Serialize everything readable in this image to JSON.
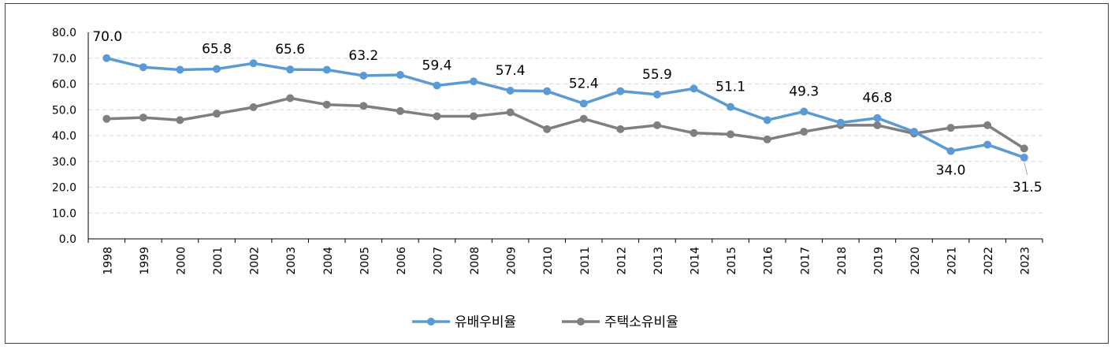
{
  "chart_data": {
    "type": "line",
    "categories": [
      "1998",
      "1999",
      "2000",
      "2001",
      "2002",
      "2003",
      "2004",
      "2005",
      "2006",
      "2007",
      "2008",
      "2009",
      "2010",
      "2011",
      "2012",
      "2013",
      "2014",
      "2015",
      "2016",
      "2017",
      "2018",
      "2019",
      "2020",
      "2021",
      "2022",
      "2023"
    ],
    "ylim": [
      0,
      80
    ],
    "y_ticks": [
      "0.0",
      "10.0",
      "20.0",
      "30.0",
      "40.0",
      "50.0",
      "60.0",
      "70.0",
      "80.0"
    ],
    "grid": true,
    "legend_position": "bottom",
    "series": [
      {
        "name": "유배우비율",
        "color": "#5b9bd5",
        "values": [
          70.0,
          66.5,
          65.5,
          65.8,
          68.0,
          65.6,
          65.5,
          63.2,
          63.5,
          59.4,
          61.0,
          57.4,
          57.2,
          52.4,
          57.2,
          55.9,
          58.2,
          51.1,
          46.0,
          49.3,
          45.0,
          46.8,
          41.5,
          34.0,
          36.5,
          31.5
        ],
        "labels": {
          "0": "70.0",
          "3": "65.8",
          "5": "65.6",
          "7": "63.2",
          "9": "59.4",
          "11": "57.4",
          "13": "52.4",
          "15": "55.9",
          "17": "51.1",
          "19": "49.3",
          "21": "46.8",
          "23": "34.0",
          "25": "31.5"
        }
      },
      {
        "name": "주택소유비율",
        "color": "#7f7f7f",
        "values": [
          46.5,
          47.0,
          46.0,
          48.5,
          51.0,
          54.5,
          52.0,
          51.5,
          49.5,
          47.5,
          47.5,
          49.0,
          42.5,
          46.5,
          42.5,
          44.0,
          41.0,
          40.5,
          38.5,
          41.5,
          44.0,
          44.0,
          40.8,
          43.0,
          44.0,
          35.0
        ]
      }
    ]
  }
}
